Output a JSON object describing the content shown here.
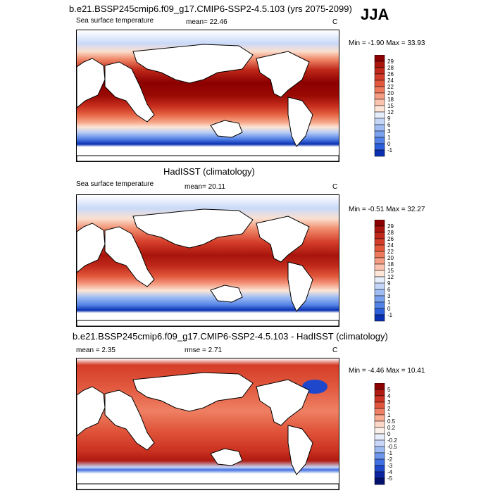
{
  "season": "JJA",
  "panels": [
    {
      "title": "b.e21.BSSP245cmip6.f09_g17.CMIP6-SSP2-4.5.103 (yrs 2075-2099)",
      "left_label": "Sea surface temperature",
      "center_label": "mean=  22.46",
      "unit": "C",
      "minmax": "Min =  -1.90 Max =  33.93",
      "colorbar_labels": [
        "29",
        "28",
        "26",
        "24",
        "22",
        "20",
        "18",
        "15",
        "12",
        "9",
        "6",
        "3",
        "1",
        "0",
        "-1"
      ],
      "colorbar_colors": [
        "#8b0000",
        "#a8150d",
        "#c0291a",
        "#d43d29",
        "#e2583c",
        "#ee7a5d",
        "#f59d83",
        "#fbc3ad",
        "#fde6d8",
        "#e6eefb",
        "#c4d6f8",
        "#9fbdf4",
        "#7aa1ee",
        "#5382e6",
        "#2c5fdc",
        "#0a2fb0"
      ]
    },
    {
      "title": "HadISST (climatology)",
      "left_label": "Sea surface temperature",
      "center_label": "mean=  20.11",
      "unit": "C",
      "minmax": "Min =  -0.51 Max =  32.27",
      "colorbar_labels": [
        "29",
        "28",
        "26",
        "24",
        "22",
        "20",
        "18",
        "15",
        "12",
        "9",
        "6",
        "3",
        "1",
        "0",
        "-1"
      ],
      "colorbar_colors": [
        "#8b0000",
        "#a8150d",
        "#c0291a",
        "#d43d29",
        "#e2583c",
        "#ee7a5d",
        "#f59d83",
        "#fbc3ad",
        "#fde6d8",
        "#e6eefb",
        "#c4d6f8",
        "#9fbdf4",
        "#7aa1ee",
        "#5382e6",
        "#2c5fdc",
        "#0a2fb0"
      ]
    },
    {
      "title": "b.e21.BSSP245cmip6.f09_g17.CMIP6-SSP2-4.5.103 - HadISST (climatology)",
      "left_label": "mean =   2.35",
      "center_label": "rmse =   2.71",
      "unit": "C",
      "minmax": "Min =  -4.46 Max =  10.41",
      "colorbar_labels": [
        "5",
        "4",
        "3",
        "2",
        "1",
        "0.5",
        "0.2",
        "0",
        "-0.2",
        "-0.5",
        "-1",
        "-2",
        "-3",
        "-4",
        "-5"
      ],
      "colorbar_colors": [
        "#8b0000",
        "#b01a10",
        "#cc3322",
        "#e0553b",
        "#ef8063",
        "#f8ae93",
        "#fcd6c6",
        "#fbf0ea",
        "#e8eefc",
        "#c9d8f8",
        "#9dbaf3",
        "#6e97ec",
        "#416fe2",
        "#1e47cc",
        "#0b24a0",
        "#04106e"
      ]
    }
  ]
}
